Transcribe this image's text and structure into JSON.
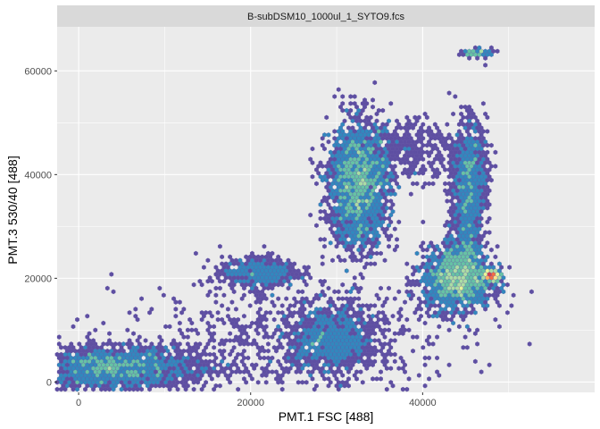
{
  "chart_data": {
    "type": "hexbin-density",
    "facet_label": "B-subDSM10_1000ul_1_SYTO9.fcs",
    "xlabel": "PMT.1 FSC [488]",
    "ylabel": "PMT.3 530/40 [488]",
    "xlim": [
      -2500,
      60000
    ],
    "ylim": [
      -2000,
      68500
    ],
    "x_ticks": [
      0,
      20000,
      40000
    ],
    "y_ticks": [
      0,
      20000,
      40000,
      60000
    ],
    "grid": true,
    "colors": {
      "panel_bg": "#ebebeb",
      "strip_bg": "#d9d9d9",
      "grid": "#ffffff",
      "density_scale": [
        "#5e4fa2",
        "#3288bd",
        "#66c2a5",
        "#abdda4",
        "#e6f598",
        "#fee08b",
        "#fdae61",
        "#f46d43",
        "#d53e4f"
      ]
    },
    "clusters": [
      {
        "cx": 3000,
        "cy": 2500,
        "sx": 3500,
        "sy": 2000,
        "n": 1400,
        "w": 0.5
      },
      {
        "cx": 9000,
        "cy": 3000,
        "sx": 4000,
        "sy": 2200,
        "n": 700,
        "w": 0.3
      },
      {
        "cx": 21000,
        "cy": 21000,
        "sx": 2200,
        "sy": 1500,
        "n": 500,
        "w": 0.45
      },
      {
        "cx": 29500,
        "cy": 8000,
        "sx": 2600,
        "sy": 3500,
        "n": 1000,
        "w": 0.5
      },
      {
        "cx": 32500,
        "cy": 38000,
        "sx": 1800,
        "sy": 6000,
        "n": 2000,
        "w": 0.8
      },
      {
        "cx": 45500,
        "cy": 40000,
        "sx": 1000,
        "sy": 5000,
        "n": 900,
        "w": 0.55
      },
      {
        "cx": 45000,
        "cy": 28000,
        "sx": 900,
        "sy": 4500,
        "n": 500,
        "w": 0.4
      },
      {
        "cx": 44000,
        "cy": 20000,
        "sx": 2000,
        "sy": 3000,
        "n": 1600,
        "w": 0.85
      },
      {
        "cx": 48000,
        "cy": 20500,
        "sx": 500,
        "sy": 500,
        "n": 300,
        "w": 1.0
      },
      {
        "cx": 46500,
        "cy": 63500,
        "sx": 900,
        "sy": 400,
        "n": 90,
        "w": 0.9
      },
      {
        "cx": 38000,
        "cy": 45000,
        "sx": 3000,
        "sy": 3000,
        "n": 400,
        "w": 0.15
      },
      {
        "cx": 25000,
        "cy": 8000,
        "sx": 10000,
        "sy": 6000,
        "n": 800,
        "w": 0.1
      }
    ]
  }
}
